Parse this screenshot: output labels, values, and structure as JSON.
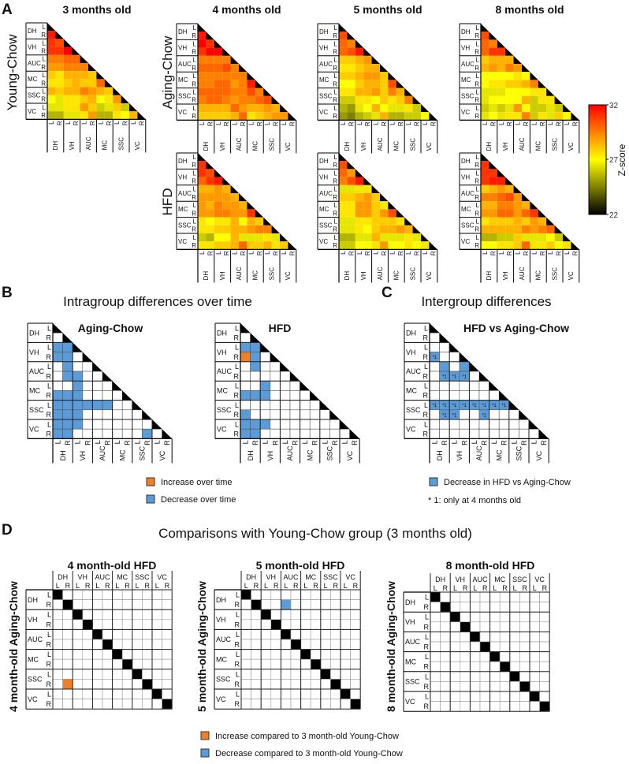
{
  "regions": [
    "DH",
    "VH",
    "AUC",
    "MC",
    "SSC",
    "VC"
  ],
  "sides": [
    "L",
    "R"
  ],
  "colors": {
    "increase": "#f07f2a",
    "decrease": "#5a9bd8",
    "diagonal": "#000000",
    "grid": "#555555"
  },
  "panelA": {
    "letter": "A",
    "titles": [
      "3 months old",
      "4 months old",
      "5 months old",
      "8 months old"
    ],
    "groups": [
      "Young-Chow",
      "Aging-Chow",
      "HFD"
    ],
    "colorbar": {
      "label": "Z-score",
      "ticks": [
        "32",
        "27",
        "22"
      ],
      "min": 22,
      "mid": 27,
      "max": 32
    }
  },
  "chart_data": [
    {
      "type": "heatmap",
      "group": "Young-Chow",
      "title": "3 months old",
      "note": "lower triangle, rows DH-R..VC-R, z-score",
      "matrix": [
        [
          31.5
        ],
        [
          31,
          30.5
        ],
        [
          31,
          31,
          32
        ],
        [
          29.5,
          29.5,
          30,
          30
        ],
        [
          29,
          29,
          29.5,
          29.5,
          29.5
        ],
        [
          28,
          27.5,
          28.5,
          28.5,
          28.5,
          28
        ],
        [
          27.5,
          27.5,
          28,
          28.5,
          28,
          28,
          30
        ],
        [
          28.5,
          28,
          28.5,
          28.5,
          29.5,
          29,
          28.5,
          28
        ],
        [
          27,
          26.5,
          27.5,
          27.5,
          28,
          28.5,
          27,
          27.5,
          29
        ],
        [
          26.5,
          26.5,
          27.5,
          27.5,
          29,
          28,
          26,
          26.5,
          28,
          26
        ],
        [
          25.5,
          25.5,
          26.5,
          26.5,
          27.5,
          29,
          25.5,
          25.5,
          27.5,
          27,
          28.5
        ]
      ]
    },
    {
      "type": "heatmap",
      "group": "Aging-Chow",
      "title": "4 months old",
      "matrix": [
        [
          31.5
        ],
        [
          32,
          31
        ],
        [
          31,
          32,
          32
        ],
        [
          29.5,
          29.5,
          29.5,
          29.5
        ],
        [
          30,
          30,
          30,
          30.5,
          29.5
        ],
        [
          29.5,
          29.5,
          29.5,
          29.5,
          29.5,
          29.5
        ],
        [
          29.5,
          29.5,
          30,
          30,
          29,
          29.5,
          31.5
        ],
        [
          30,
          30,
          30,
          30,
          29.5,
          29.5,
          30.5,
          29.5
        ],
        [
          29.5,
          30,
          30,
          29.5,
          29,
          29.5,
          29.5,
          30,
          30.5
        ],
        [
          28.5,
          28.5,
          28.5,
          28.5,
          30,
          29,
          28.5,
          28.5,
          29,
          28.5
        ],
        [
          28,
          28,
          28,
          28,
          28.5,
          30,
          27.5,
          28,
          28.5,
          29,
          29
        ]
      ]
    },
    {
      "type": "heatmap",
      "group": "Aging-Chow",
      "title": "5 months old",
      "matrix": [
        [
          30.5
        ],
        [
          30,
          29.5
        ],
        [
          30,
          30.5,
          31.5
        ],
        [
          28,
          28,
          28.5,
          29
        ],
        [
          27.5,
          27.5,
          28,
          28.5,
          28.5
        ],
        [
          28,
          28,
          28.5,
          29,
          29,
          28
        ],
        [
          27,
          27,
          28,
          28.5,
          28.5,
          28,
          30.5
        ],
        [
          27.5,
          27.5,
          28.5,
          28.5,
          29,
          28,
          29.5,
          28.5
        ],
        [
          26,
          26,
          27.5,
          27.5,
          27,
          28,
          27.5,
          28,
          29.5
        ],
        [
          25.5,
          25,
          26.5,
          27,
          28.5,
          27,
          26.5,
          26.5,
          27.5,
          26
        ],
        [
          25,
          24.5,
          25.5,
          26,
          26.5,
          28.5,
          25.5,
          25.5,
          26,
          26,
          27
        ]
      ]
    },
    {
      "type": "heatmap",
      "group": "Aging-Chow",
      "title": "8 months old",
      "matrix": [
        [
          30.5
        ],
        [
          30,
          29.5
        ],
        [
          30,
          31,
          31
        ],
        [
          28,
          28.5,
          28.5,
          28.5
        ],
        [
          28.5,
          29,
          28.5,
          29.5,
          29
        ],
        [
          27,
          27,
          27,
          27,
          27.5,
          27
        ],
        [
          27,
          27.5,
          27.5,
          28,
          28,
          28.5,
          29.5
        ],
        [
          26.5,
          26.5,
          26.5,
          27,
          27,
          27,
          27.5,
          27.5
        ],
        [
          26.5,
          27,
          27,
          27,
          27,
          28.5,
          26,
          27.5,
          27.5
        ],
        [
          26,
          26.5,
          26,
          26.5,
          29,
          27,
          26,
          26,
          26.5,
          26
        ],
        [
          26.5,
          27,
          26.5,
          27.5,
          27.5,
          29.5,
          26,
          27.5,
          26.5,
          28,
          27
        ]
      ]
    },
    {
      "type": "heatmap",
      "group": "HFD",
      "title": "4 months old",
      "matrix": [
        [
          31
        ],
        [
          31,
          30.5
        ],
        [
          30,
          31,
          31.5
        ],
        [
          28.5,
          28.5,
          29,
          28.5
        ],
        [
          29,
          29,
          29,
          29,
          28.5
        ],
        [
          29,
          28.5,
          29.5,
          29,
          29,
          28.5
        ],
        [
          29,
          29,
          29.5,
          29.5,
          29,
          29,
          31
        ],
        [
          27.5,
          27,
          27.5,
          27.5,
          28.5,
          27,
          28.5,
          28
        ],
        [
          27.5,
          27.5,
          28,
          28,
          28.5,
          28.5,
          29,
          29.5,
          29.5
        ],
        [
          26,
          25.5,
          27,
          27,
          28.5,
          26.5,
          26.5,
          26.5,
          27.5,
          26.5
        ],
        [
          27.5,
          27.5,
          28,
          28,
          28.5,
          30,
          28,
          28,
          28.5,
          27.5,
          28
        ]
      ]
    },
    {
      "type": "heatmap",
      "group": "HFD",
      "title": "5 months old",
      "matrix": [
        [
          30.5
        ],
        [
          30,
          29
        ],
        [
          29.5,
          30.5,
          31.5
        ],
        [
          26.5,
          26.5,
          27.5,
          27.5
        ],
        [
          28,
          28,
          28.5,
          29,
          28
        ],
        [
          27.5,
          27.5,
          29,
          29,
          28,
          27.5
        ],
        [
          27.5,
          27.5,
          29,
          29,
          28,
          29,
          30.5
        ],
        [
          26.5,
          26.5,
          27.5,
          27.5,
          28,
          28,
          28,
          27.5
        ],
        [
          26.5,
          26.5,
          27.5,
          27,
          28,
          28.5,
          28.5,
          29,
          28.5
        ],
        [
          25.5,
          25.5,
          26.5,
          26.5,
          28.5,
          26.5,
          26.5,
          26.5,
          27.5,
          26.5
        ],
        [
          26,
          26,
          27,
          27,
          27.5,
          29,
          27,
          27,
          27.5,
          27,
          27.5
        ]
      ]
    },
    {
      "type": "heatmap",
      "group": "HFD",
      "title": "8 months old",
      "matrix": [
        [
          31
        ],
        [
          31,
          31
        ],
        [
          31,
          31.5,
          31.5
        ],
        [
          28,
          28.5,
          29,
          28.5
        ],
        [
          29.5,
          29.5,
          30,
          30.5,
          29
        ],
        [
          28.5,
          28.5,
          29.5,
          29.5,
          29,
          28.5
        ],
        [
          29,
          29,
          30,
          30,
          29,
          30,
          31
        ],
        [
          27.5,
          28,
          28,
          28,
          28.5,
          28,
          29,
          28.5
        ],
        [
          28.5,
          28.5,
          28.5,
          28.5,
          28.5,
          29.5,
          29,
          29.5,
          30
        ],
        [
          25.5,
          25.5,
          26,
          26,
          28,
          26.5,
          26.5,
          26.5,
          27,
          26
        ],
        [
          27,
          27,
          27.5,
          27.5,
          28,
          30,
          27.5,
          27.5,
          28,
          27,
          27.5
        ]
      ]
    }
  ],
  "panelB": {
    "letter": "B",
    "title": "Intragroup differences over time",
    "matrices": [
      {
        "title": "Aging-Chow",
        "marks": [
          [
            2,
            0,
            "decrease"
          ],
          [
            2,
            1,
            "decrease"
          ],
          [
            3,
            0,
            "decrease"
          ],
          [
            3,
            1,
            "decrease"
          ],
          [
            4,
            1,
            "decrease"
          ],
          [
            5,
            1,
            "decrease"
          ],
          [
            5,
            2,
            "decrease"
          ],
          [
            6,
            2,
            "decrease"
          ],
          [
            7,
            0,
            "decrease"
          ],
          [
            7,
            1,
            "decrease"
          ],
          [
            7,
            2,
            "decrease"
          ],
          [
            8,
            0,
            "decrease"
          ],
          [
            8,
            1,
            "decrease"
          ],
          [
            8,
            2,
            "decrease"
          ],
          [
            8,
            3,
            "decrease"
          ],
          [
            8,
            4,
            "decrease"
          ],
          [
            8,
            5,
            "decrease"
          ],
          [
            9,
            0,
            "decrease"
          ],
          [
            9,
            1,
            "decrease"
          ],
          [
            9,
            2,
            "decrease"
          ],
          [
            10,
            0,
            "decrease"
          ],
          [
            10,
            1,
            "decrease"
          ],
          [
            10,
            2,
            "decrease"
          ],
          [
            11,
            0,
            "decrease"
          ],
          [
            11,
            1,
            "decrease"
          ],
          [
            11,
            9,
            "decrease"
          ]
        ]
      },
      {
        "title": "HFD",
        "marks": [
          [
            2,
            0,
            "decrease"
          ],
          [
            2,
            1,
            "decrease"
          ],
          [
            3,
            0,
            "increase"
          ],
          [
            3,
            1,
            "decrease"
          ],
          [
            4,
            1,
            "decrease"
          ],
          [
            6,
            2,
            "decrease"
          ],
          [
            7,
            0,
            "decrease"
          ],
          [
            7,
            1,
            "decrease"
          ],
          [
            7,
            2,
            "decrease"
          ],
          [
            9,
            0,
            "decrease"
          ],
          [
            10,
            0,
            "decrease"
          ],
          [
            10,
            1,
            "decrease"
          ],
          [
            10,
            2,
            "decrease"
          ],
          [
            11,
            0,
            "decrease"
          ],
          [
            11,
            1,
            "decrease"
          ]
        ]
      }
    ],
    "legend": [
      "Increase over time",
      "Decrease over time"
    ]
  },
  "panelC": {
    "letter": "C",
    "title": "Intergroup differences",
    "matrix": {
      "title": "HFD vs Aging-Chow",
      "marks": [
        [
          3,
          0,
          "decrease",
          "*1"
        ],
        [
          4,
          1,
          "decrease",
          ""
        ],
        [
          4,
          3,
          "decrease",
          ""
        ],
        [
          5,
          1,
          "decrease",
          "*1"
        ],
        [
          5,
          2,
          "decrease",
          "*1"
        ],
        [
          5,
          3,
          "decrease",
          "*1"
        ],
        [
          8,
          0,
          "decrease",
          "*1"
        ],
        [
          8,
          1,
          "decrease",
          "*1"
        ],
        [
          8,
          2,
          "decrease",
          "*1"
        ],
        [
          8,
          3,
          "decrease",
          "*1"
        ],
        [
          8,
          4,
          "decrease",
          "*1"
        ],
        [
          8,
          5,
          "decrease",
          "*1"
        ],
        [
          8,
          6,
          "decrease",
          "*1"
        ],
        [
          8,
          7,
          "decrease",
          "*1"
        ],
        [
          9,
          1,
          "decrease",
          "*1"
        ],
        [
          9,
          2,
          "decrease",
          "*1"
        ],
        [
          9,
          5,
          "decrease",
          "*1"
        ]
      ]
    },
    "legend": "Decrease in HFD vs Aging-Chow",
    "footnote": "* 1: only at 4 months old"
  },
  "panelD": {
    "letter": "D",
    "title": "Comparisons with Young-Chow group (3 months old)",
    "matrices": [
      {
        "title": "4 month-old HFD",
        "ylabel": "4 month-old Aging-Chow",
        "marks": [
          [
            9,
            1,
            "increase"
          ]
        ]
      },
      {
        "title": "5 month-old HFD",
        "ylabel": "5 month-old Aging-Chow",
        "marks": [
          [
            1,
            4,
            "decrease"
          ]
        ]
      },
      {
        "title": "8 month-old HFD",
        "ylabel": "8 month-old Aging-Chow",
        "marks": []
      }
    ],
    "legend": [
      "Increase compared to 3 month-old Young-Chow",
      "Decrease compared to 3 month-old Young-Chow"
    ]
  }
}
